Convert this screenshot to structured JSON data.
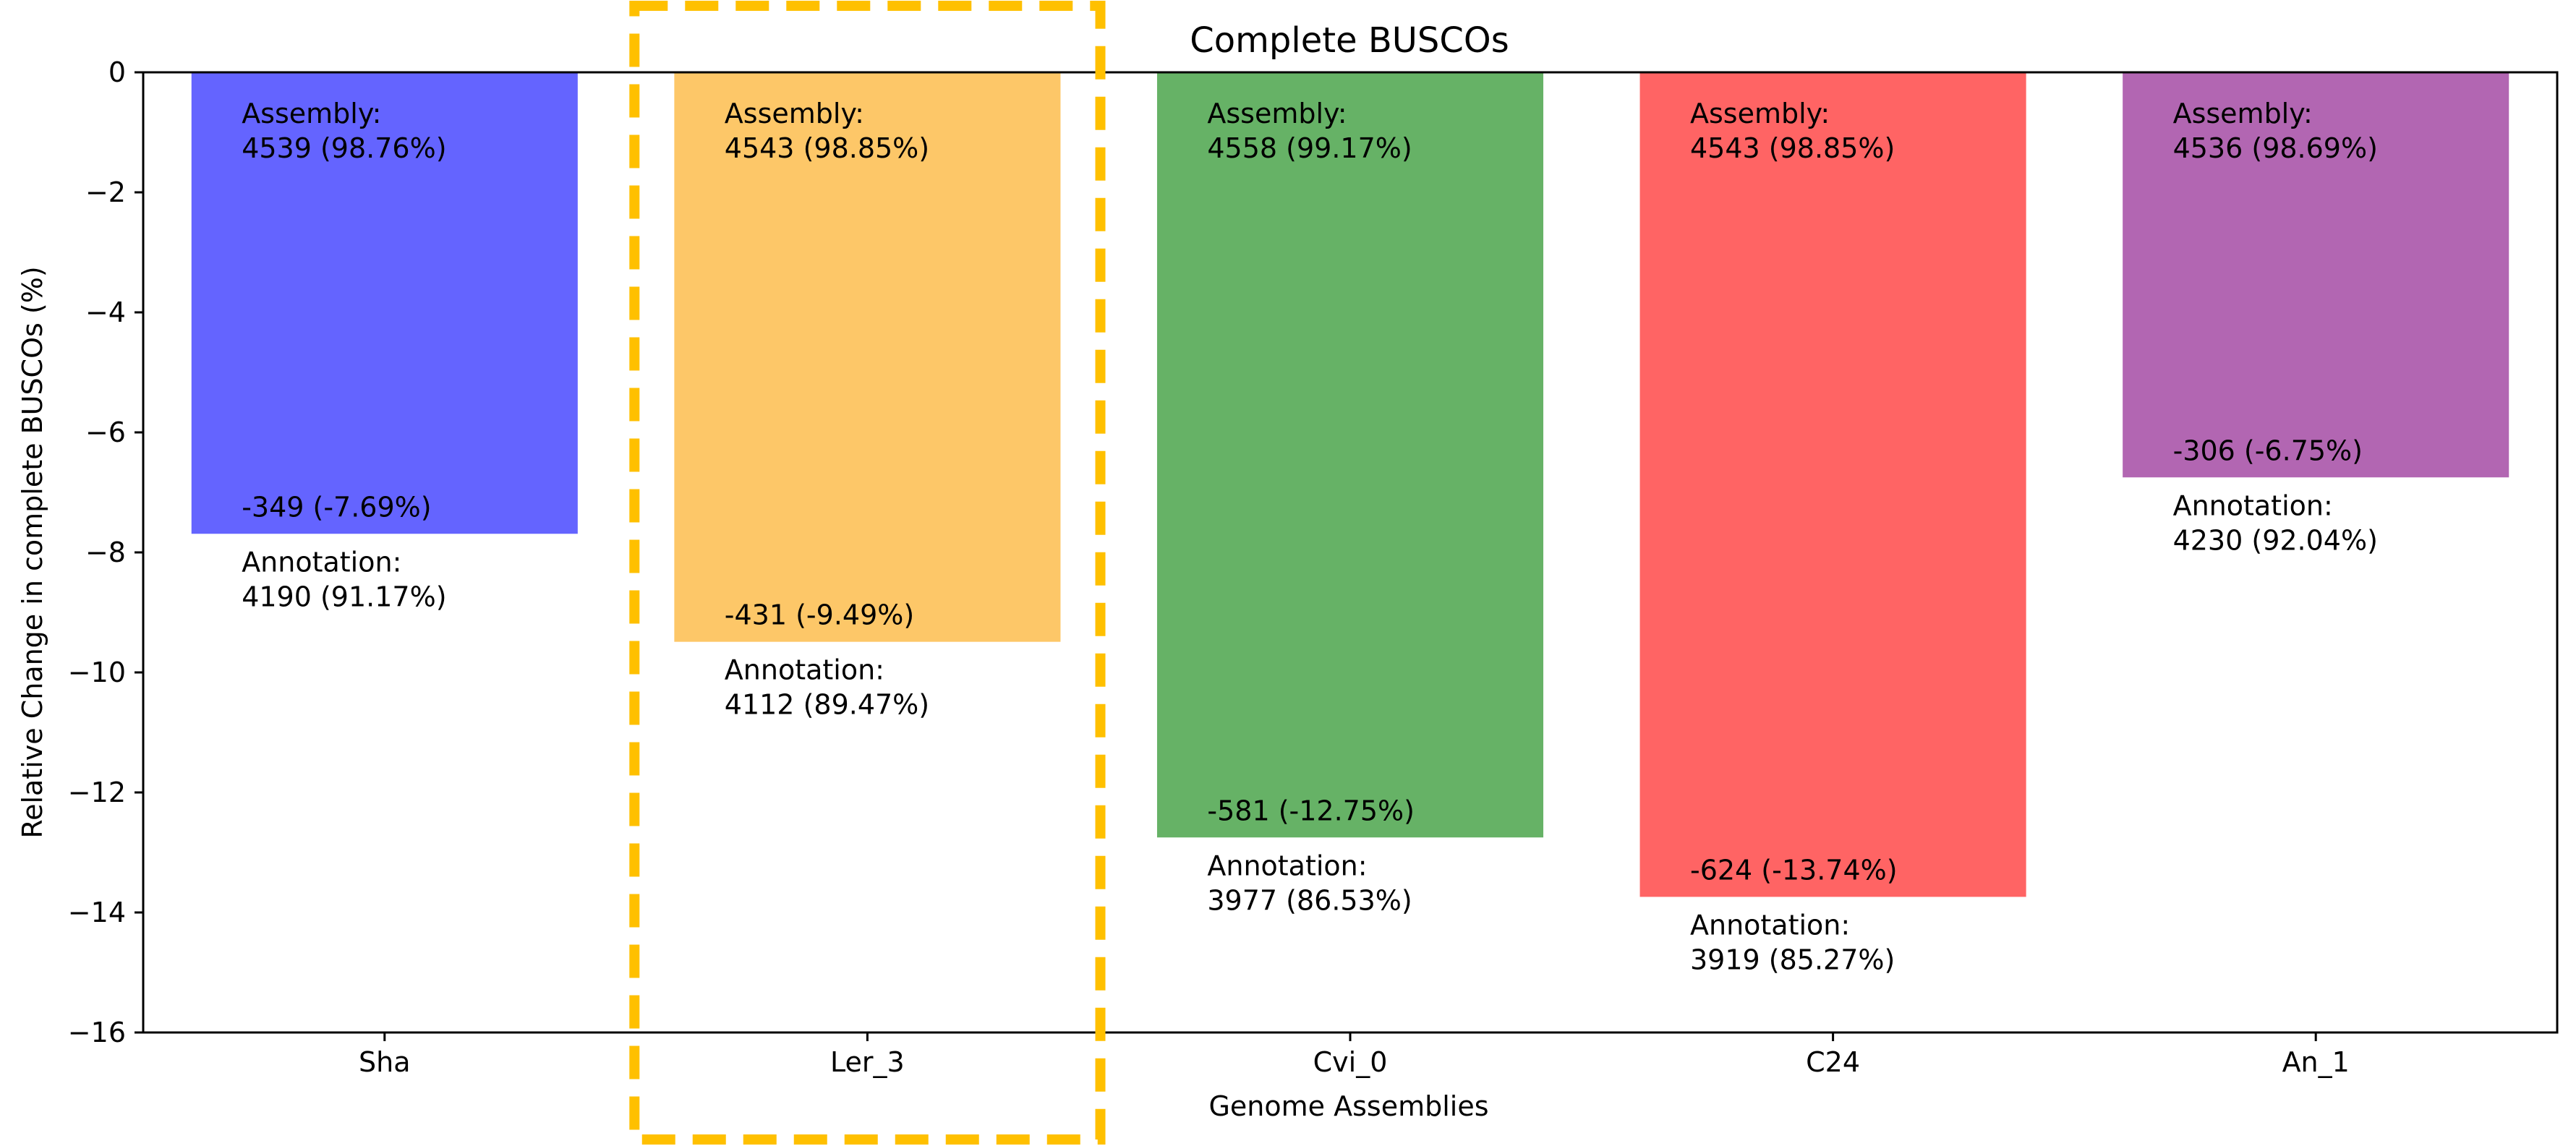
{
  "chart_data": {
    "type": "bar",
    "title": "Complete BUSCOs",
    "xlabel": "Genome Assemblies",
    "ylabel": "Relative Change in complete BUSCOs (%)",
    "ylim": [
      -16,
      0
    ],
    "yticks": [
      0,
      -2,
      -4,
      -6,
      -8,
      -10,
      -12,
      -14,
      -16
    ],
    "ytick_labels": [
      "0",
      "−2",
      "−4",
      "−6",
      "−8",
      "−10",
      "−12",
      "−14",
      "−16"
    ],
    "grid": false,
    "categories": [
      "Sha",
      "Ler_3",
      "Cvi_0",
      "C24",
      "An_1"
    ],
    "values": [
      -7.69,
      -9.49,
      -12.75,
      -13.74,
      -6.75
    ],
    "colors": [
      "#6464ff",
      "#fdc768",
      "#66b266",
      "#ff6464",
      "#b266b2"
    ],
    "highlight": {
      "category": "Ler_3",
      "color": "#ffc000",
      "style": "dashed"
    },
    "annotations": [
      {
        "assembly_label": "Assembly:",
        "assembly_value": "4539 (98.76%)",
        "change": "-349 (-7.69%)",
        "annotation_label": "Annotation:",
        "annotation_value": "4190 (91.17%)"
      },
      {
        "assembly_label": "Assembly:",
        "assembly_value": "4543 (98.85%)",
        "change": "-431 (-9.49%)",
        "annotation_label": "Annotation:",
        "annotation_value": "4112 (89.47%)"
      },
      {
        "assembly_label": "Assembly:",
        "assembly_value": "4558 (99.17%)",
        "change": "-581 (-12.75%)",
        "annotation_label": "Annotation:",
        "annotation_value": "3977 (86.53%)"
      },
      {
        "assembly_label": "Assembly:",
        "assembly_value": "4543 (98.85%)",
        "change": "-624 (-13.74%)",
        "annotation_label": "Annotation:",
        "annotation_value": "3919 (85.27%)"
      },
      {
        "assembly_label": "Assembly:",
        "assembly_value": "4536 (98.69%)",
        "change": "-306 (-6.75%)",
        "annotation_label": "Annotation:",
        "annotation_value": "4230 (92.04%)"
      }
    ]
  }
}
